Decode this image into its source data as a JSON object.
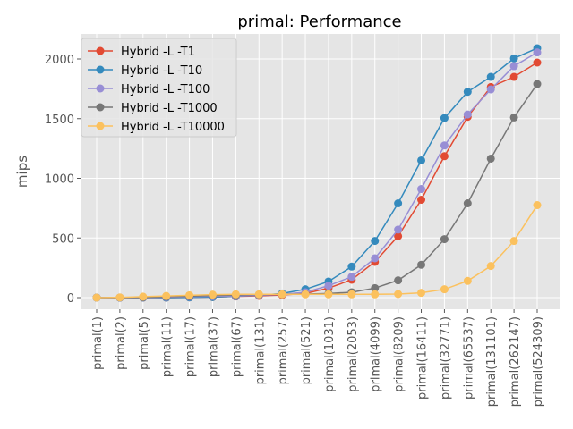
{
  "chart_data": {
    "type": "line",
    "title": "primal: Performance",
    "xlabel": "",
    "ylabel": "mips",
    "ylim": [
      -100,
      2200
    ],
    "yticks": [
      0,
      500,
      1000,
      1500,
      2000
    ],
    "grid": true,
    "legend_position": "top-left",
    "categories": [
      "primal(1)",
      "primal(2)",
      "primal(5)",
      "primal(11)",
      "primal(17)",
      "primal(37)",
      "primal(67)",
      "primal(131)",
      "primal(257)",
      "primal(521)",
      "primal(1031)",
      "primal(2053)",
      "primal(4099)",
      "primal(8209)",
      "primal(16411)",
      "primal(32771)",
      "primal(65537)",
      "primal(131101)",
      "primal(262147)",
      "primal(524309)"
    ],
    "series": [
      {
        "name": "Hybrid -L -T1",
        "color": "#e24a33",
        "values": [
          0,
          0,
          0,
          0,
          2,
          5,
          10,
          15,
          22,
          35,
          80,
          150,
          300,
          515,
          820,
          1185,
          1515,
          1765,
          1850,
          1970
        ]
      },
      {
        "name": "Hybrid -L -T10",
        "color": "#348abd",
        "values": [
          0,
          0,
          0,
          0,
          2,
          5,
          12,
          20,
          35,
          70,
          135,
          260,
          475,
          790,
          1150,
          1505,
          1725,
          1850,
          2005,
          2090
        ]
      },
      {
        "name": "Hybrid -L -T100",
        "color": "#988ed5",
        "values": [
          0,
          0,
          2,
          5,
          8,
          12,
          15,
          20,
          28,
          45,
          100,
          175,
          330,
          570,
          910,
          1275,
          1535,
          1745,
          1940,
          2055
        ]
      },
      {
        "name": "Hybrid -L -T1000",
        "color": "#777777",
        "values": [
          0,
          0,
          3,
          8,
          12,
          18,
          22,
          25,
          28,
          30,
          35,
          45,
          80,
          145,
          275,
          490,
          790,
          1165,
          1510,
          1790
        ]
      },
      {
        "name": "Hybrid -L -T10000",
        "color": "#fbc15e",
        "values": [
          0,
          2,
          8,
          14,
          20,
          25,
          28,
          28,
          28,
          28,
          28,
          28,
          28,
          30,
          40,
          70,
          140,
          265,
          475,
          775
        ]
      }
    ]
  }
}
